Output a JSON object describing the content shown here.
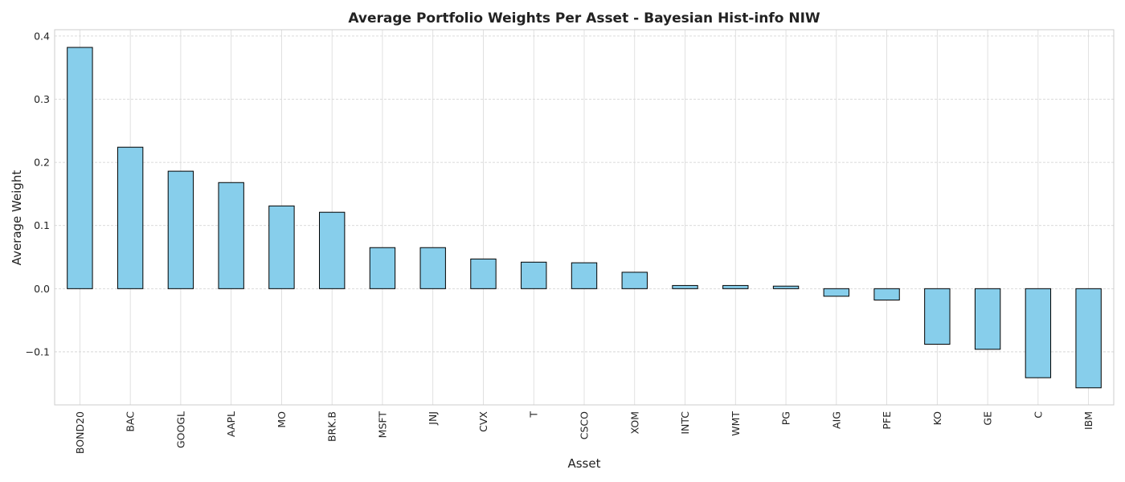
{
  "chart_data": {
    "type": "bar",
    "title": "Average Portfolio Weights Per Asset - Bayesian Hist-info NIW",
    "xlabel": "Asset",
    "ylabel": "Average Weight",
    "categories": [
      "BOND20",
      "BAC",
      "GOOGL",
      "AAPL",
      "MO",
      "BRK.B",
      "MSFT",
      "JNJ",
      "CVX",
      "T",
      "CSCO",
      "XOM",
      "INTC",
      "WMT",
      "PG",
      "AIG",
      "PFE",
      "KO",
      "GE",
      "C",
      "IBM"
    ],
    "values": [
      0.382,
      0.224,
      0.186,
      0.168,
      0.131,
      0.121,
      0.065,
      0.065,
      0.047,
      0.042,
      0.041,
      0.026,
      0.005,
      0.005,
      0.004,
      -0.012,
      -0.018,
      -0.088,
      -0.096,
      -0.141,
      -0.157
    ],
    "yticks": [
      0.4,
      0.3,
      0.2,
      0.1,
      0.0,
      -0.1
    ],
    "ytick_labels": [
      "0.4",
      "0.3",
      "0.2",
      "0.1",
      "0.0",
      "−0.1"
    ],
    "ylim": [
      -0.184,
      0.41
    ],
    "grid": true,
    "bar_color": "#87CEEB",
    "edge_color": "#000000"
  }
}
